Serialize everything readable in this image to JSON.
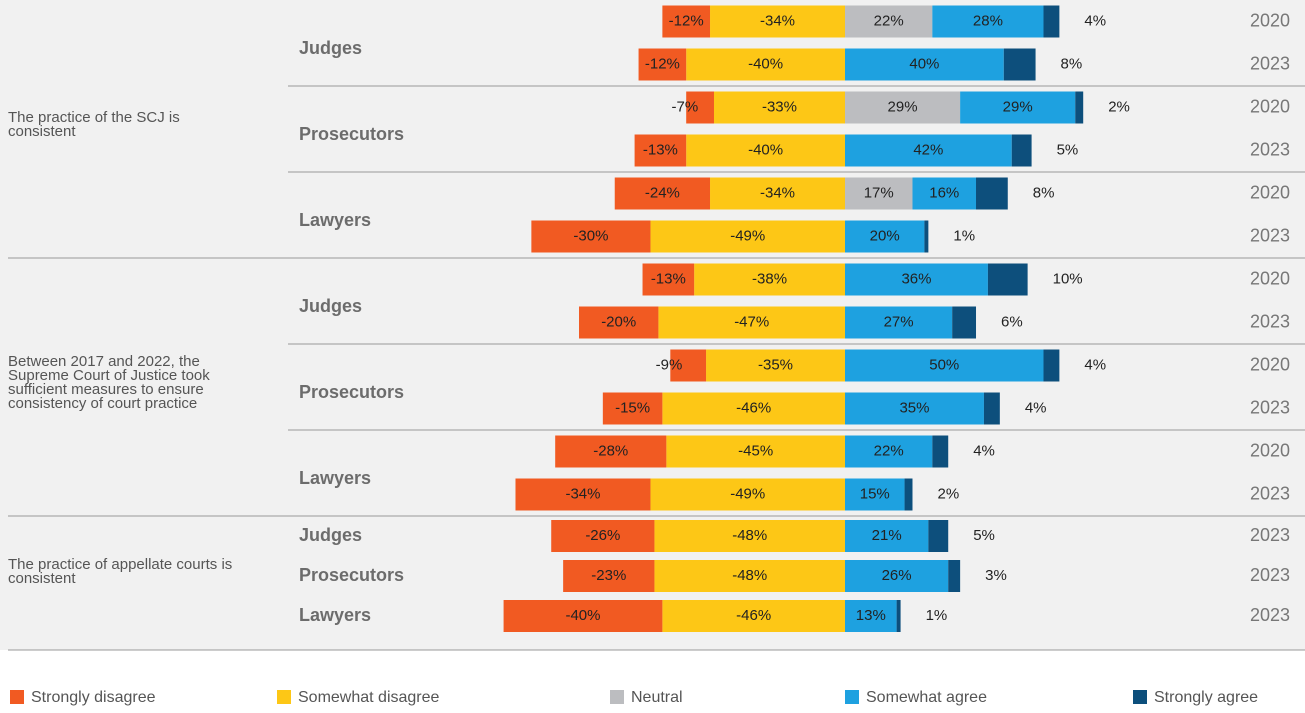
{
  "chart_data": {
    "type": "bar",
    "orientation": "horizontal",
    "groups": [
      {
        "label": "The practice of the SCJ is consistent",
        "subgroups": [
          {
            "name": "Judges",
            "years": [
              "2020",
              "2023"
            ]
          },
          {
            "name": "Prosecutors",
            "years": [
              "2020",
              "2023"
            ]
          },
          {
            "name": "Lawyers",
            "years": [
              "2020",
              "2023"
            ]
          }
        ]
      },
      {
        "label": "Between 2017 and 2022, the Supreme Court of Justice took sufficient measures to ensure consistency of court practice",
        "subgroups": [
          {
            "name": "Judges",
            "years": [
              "2020",
              "2023"
            ]
          },
          {
            "name": "Prosecutors",
            "years": [
              "2020",
              "2023"
            ]
          },
          {
            "name": "Lawyers",
            "years": [
              "2020",
              "2023"
            ]
          }
        ]
      },
      {
        "label": "The practice of appellate courts is consistent",
        "subgroups": [
          {
            "name": "Judges",
            "years": [
              "2023"
            ]
          },
          {
            "name": "Prosecutors",
            "years": [
              "2023"
            ]
          },
          {
            "name": "Lawyers",
            "years": [
              "2023"
            ]
          }
        ]
      }
    ],
    "series": [
      {
        "name": "Strongly disagree",
        "color": "#f15a22",
        "values": [
          -12,
          -12,
          -7,
          -13,
          -24,
          -30,
          -13,
          -20,
          -9,
          -15,
          -28,
          -34,
          -26,
          -23,
          -40
        ],
        "value_labels": [
          "-12%",
          "-12%",
          "-7%",
          "-13%",
          "-24%",
          "-30%",
          "-13%",
          "-20%",
          "-9%",
          "-15%",
          "-28%",
          "-34%",
          "-26%",
          "-23%",
          "-40%"
        ]
      },
      {
        "name": "Somewhat disagree",
        "color": "#fdc716",
        "values": [
          -34,
          -40,
          -33,
          -40,
          -34,
          -49,
          -38,
          -47,
          -35,
          -46,
          -45,
          -49,
          -48,
          -48,
          -46
        ],
        "value_labels": [
          "-34%",
          "-40%",
          "-33%",
          "-40%",
          "-34%",
          "-49%",
          "-38%",
          "-47%",
          "-35%",
          "-46%",
          "-45%",
          "-49%",
          "-48%",
          "-48%",
          "-46%"
        ]
      },
      {
        "name": "Neutral",
        "color": "#bcbdc0",
        "values": [
          22,
          null,
          29,
          null,
          17,
          null,
          null,
          null,
          null,
          null,
          null,
          null,
          null,
          null,
          null
        ],
        "value_labels": [
          "22%",
          null,
          "29%",
          null,
          "17%",
          null,
          null,
          null,
          null,
          null,
          null,
          null,
          null,
          null,
          null
        ]
      },
      {
        "name": "Somewhat agree",
        "color": "#1ea1e0",
        "values": [
          28,
          40,
          29,
          42,
          16,
          20,
          36,
          27,
          50,
          35,
          22,
          15,
          21,
          26,
          13
        ],
        "value_labels": [
          "28%",
          "40%",
          "29%",
          "42%",
          "16%",
          "20%",
          "36%",
          "27%",
          "50%",
          "35%",
          "22%",
          "15%",
          "21%",
          "26%",
          "13%"
        ]
      },
      {
        "name": "Strongly agree",
        "color": "#0d4f7c",
        "values": [
          4,
          8,
          2,
          5,
          8,
          1,
          10,
          6,
          4,
          4,
          4,
          2,
          5,
          3,
          1
        ],
        "value_labels": [
          "4%",
          "8%",
          "2%",
          "5%",
          "8%",
          "1%",
          "10%",
          "6%",
          "4%",
          "4%",
          "4%",
          "2%",
          "5%",
          "3%",
          "1%"
        ]
      }
    ]
  }
}
